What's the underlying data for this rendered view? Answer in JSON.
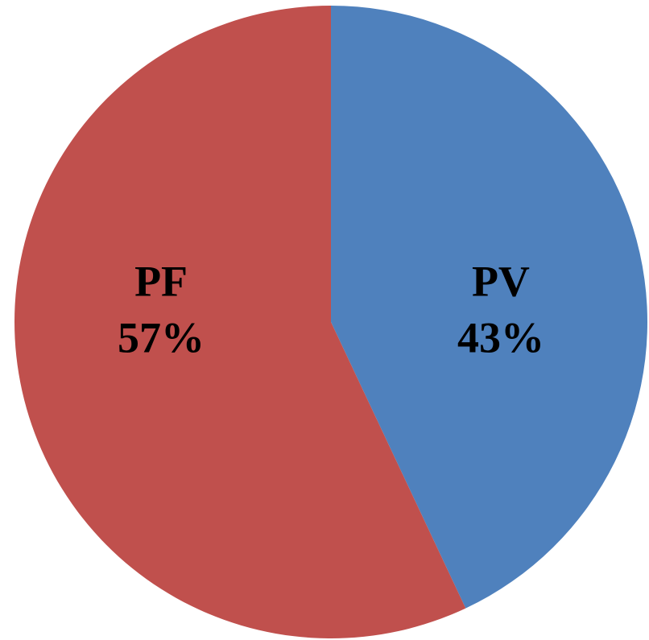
{
  "chart_data": {
    "type": "pie",
    "categories": [
      "PV",
      "PF"
    ],
    "values": [
      43,
      57
    ],
    "value_labels": [
      "43%",
      "57%"
    ],
    "colors": [
      "#4f81bd",
      "#c0504d"
    ]
  }
}
